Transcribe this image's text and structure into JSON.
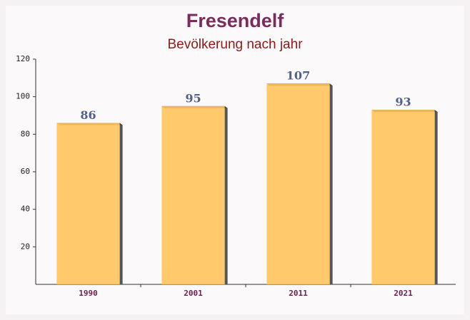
{
  "chart_data": {
    "type": "bar",
    "title": "Fresendelf",
    "subtitle": "Bevölkerung nach jahr",
    "categories": [
      "1990",
      "2001",
      "2011",
      "2021"
    ],
    "values": [
      86,
      95,
      107,
      93
    ],
    "color": "#ffc35c",
    "ylim": [
      0,
      120
    ],
    "yticks": [
      20,
      40,
      60,
      80,
      100,
      120
    ]
  }
}
